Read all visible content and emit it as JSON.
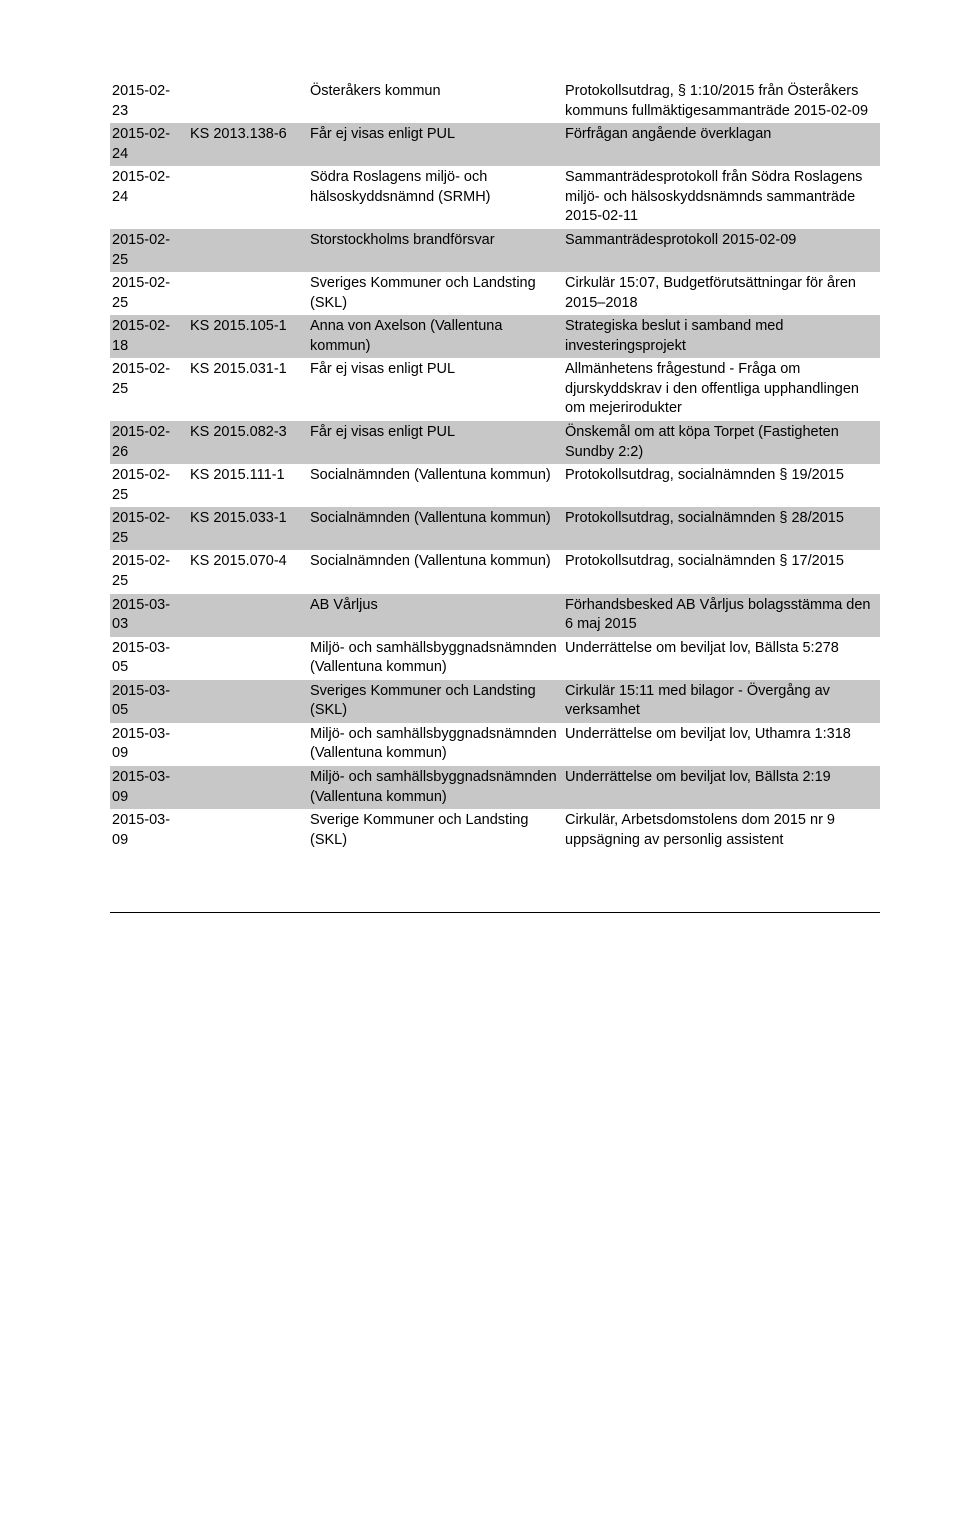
{
  "colors": {
    "background": "#ffffff",
    "text": "#000000",
    "shaded_row_bg": "#c7c7c7",
    "rule": "#000000"
  },
  "typography": {
    "font_family": "Verdana",
    "cell_fontsize_pt": 11,
    "line_height": 1.35
  },
  "columns": [
    "date",
    "ref",
    "from",
    "desc"
  ],
  "rows": [
    {
      "shaded": false,
      "date": "2015-02-23",
      "ref": "",
      "from": "Österåkers kommun",
      "desc": "Protokollsutdrag, § 1:10/2015 från Österåkers kommuns fullmäktigesammanträde 2015-02-09"
    },
    {
      "shaded": true,
      "date": "2015-02-24",
      "ref": "KS 2013.138-6",
      "from": "Får ej visas enligt PUL",
      "desc": "Förfrågan angående överklagan"
    },
    {
      "shaded": false,
      "date": "2015-02-24",
      "ref": "",
      "from": "Södra Roslagens miljö- och hälsoskyddsnämnd (SRMH)",
      "desc": "Sammanträdesprotokoll från Södra Roslagens miljö- och hälsoskyddsnämnds sammanträde 2015-02-11"
    },
    {
      "shaded": true,
      "date": "2015-02-25",
      "ref": "",
      "from": "Storstockholms brandförsvar",
      "desc": "Sammanträdesprotokoll 2015-02-09"
    },
    {
      "shaded": false,
      "date": "2015-02-25",
      "ref": "",
      "from": "Sveriges Kommuner och Landsting (SKL)",
      "desc": "Cirkulär 15:07, Budgetförutsättningar för åren 2015–2018"
    },
    {
      "shaded": true,
      "date": "2015-02-18",
      "ref": "KS 2015.105-1",
      "from": "Anna von Axelson (Vallentuna kommun)",
      "desc": "Strategiska beslut i samband med investeringsprojekt"
    },
    {
      "shaded": false,
      "date": "2015-02-25",
      "ref": "KS 2015.031-1",
      "from": "Får ej visas enligt PUL",
      "desc": "Allmänhetens frågestund - Fråga om djurskyddskrav i den offentliga upphandlingen om mejerirodukter"
    },
    {
      "shaded": true,
      "date": "2015-02-26",
      "ref": "KS 2015.082-3",
      "from": "Får ej visas enligt PUL",
      "desc": "Önskemål om att köpa Torpet (Fastigheten Sundby 2:2)"
    },
    {
      "shaded": false,
      "date": "2015-02-25",
      "ref": "KS 2015.111-1",
      "from": "Socialnämnden (Vallentuna kommun)",
      "desc": "Protokollsutdrag, socialnämnden § 19/2015"
    },
    {
      "shaded": true,
      "date": "2015-02-25",
      "ref": "KS 2015.033-1",
      "from": "Socialnämnden (Vallentuna kommun)",
      "desc": "Protokollsutdrag, socialnämnden § 28/2015"
    },
    {
      "shaded": false,
      "date": "2015-02-25",
      "ref": "KS 2015.070-4",
      "from": "Socialnämnden (Vallentuna kommun)",
      "desc": "Protokollsutdrag, socialnämnden § 17/2015"
    },
    {
      "shaded": true,
      "date": "2015-03-03",
      "ref": "",
      "from": "AB Vårljus",
      "desc": "Förhandsbesked AB Vårljus bolagsstämma den 6 maj 2015"
    },
    {
      "shaded": false,
      "date": "2015-03-05",
      "ref": "",
      "from": "Miljö- och samhällsbyggnadsnämnden (Vallentuna kommun)",
      "desc": "Underrättelse om beviljat lov, Bällsta 5:278"
    },
    {
      "shaded": true,
      "date": "2015-03-05",
      "ref": "",
      "from": "Sveriges Kommuner och Landsting (SKL)",
      "desc": "Cirkulär 15:11 med bilagor - Övergång av verksamhet"
    },
    {
      "shaded": false,
      "date": "2015-03-09",
      "ref": "",
      "from": "Miljö- och samhällsbyggnadsnämnden (Vallentuna kommun)",
      "desc": "Underrättelse om beviljat lov, Uthamra 1:318"
    },
    {
      "shaded": true,
      "date": "2015-03-09",
      "ref": "",
      "from": "Miljö- och samhällsbyggnadsnämnden (Vallentuna kommun)",
      "desc": "Underrättelse om beviljat lov, Bällsta 2:19"
    },
    {
      "shaded": false,
      "date": "2015-03-09",
      "ref": "",
      "from": "Sverige Kommuner och Landsting (SKL)",
      "desc": "Cirkulär, Arbetsdomstolens dom 2015 nr 9 uppsägning av personlig assistent"
    }
  ]
}
